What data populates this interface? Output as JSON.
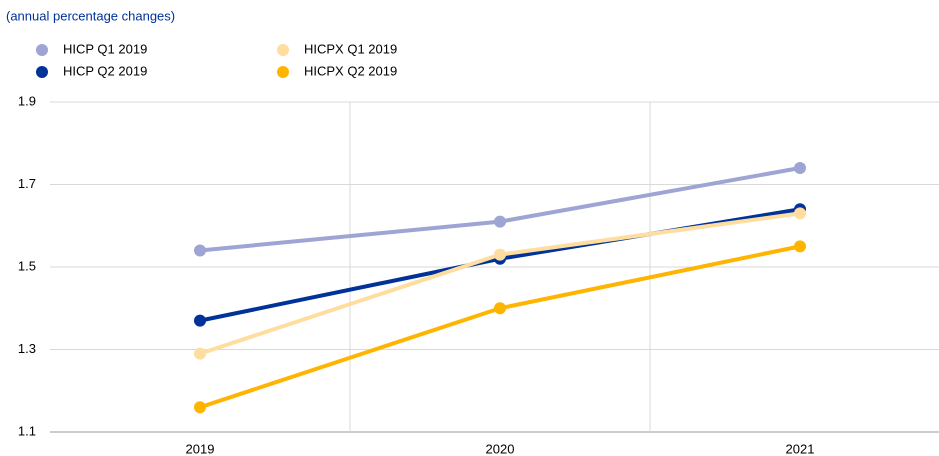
{
  "chart_data": {
    "type": "line",
    "subtitle": "(annual percentage changes)",
    "categories": [
      "2019",
      "2020",
      "2021"
    ],
    "series": [
      {
        "name": "HICP Q1 2019",
        "color": "#9ea4d4",
        "values": [
          1.54,
          1.61,
          1.74
        ]
      },
      {
        "name": "HICP Q2 2019",
        "color": "#003299",
        "values": [
          1.37,
          1.52,
          1.64
        ]
      },
      {
        "name": "HICPX Q1 2019",
        "color": "#fedd9e",
        "values": [
          1.29,
          1.53,
          1.63
        ]
      },
      {
        "name": "HICPX Q2 2019",
        "color": "#ffb400",
        "values": [
          1.16,
          1.4,
          1.55
        ]
      }
    ],
    "ylim": [
      1.1,
      1.9
    ],
    "yticks": [
      1.1,
      1.3,
      1.5,
      1.7,
      1.9
    ],
    "grid": true,
    "legend": "top-left"
  }
}
